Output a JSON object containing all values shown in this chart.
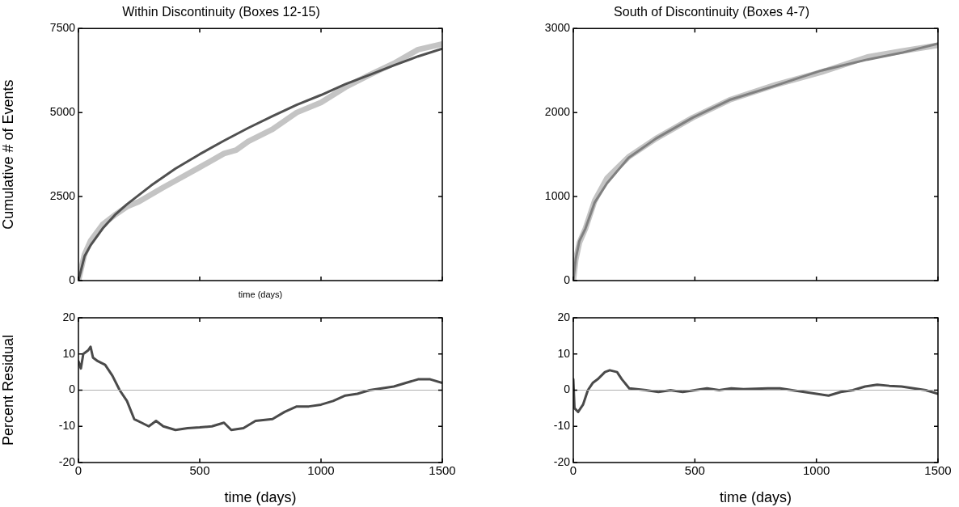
{
  "chart_data": [
    {
      "type": "line",
      "title": "Within Discontinuity (Boxes 12-15)",
      "xlabel": "time (days)",
      "ylabel": "Cumulative # of Events",
      "xlim": [
        0,
        1500
      ],
      "xticks": [
        0,
        500,
        1000,
        1500
      ],
      "ylim": [
        0,
        7500
      ],
      "yticks": [
        0,
        2500,
        5000,
        7500
      ],
      "tick_labels": "y",
      "marker": "none",
      "grid": false,
      "series": [
        {
          "color": "#c4c4c4",
          "x": [
            0,
            25,
            50,
            100,
            150,
            200,
            250,
            300,
            350,
            400,
            500,
            600,
            650,
            700,
            800,
            900,
            1000,
            1100,
            1200,
            1300,
            1400,
            1500
          ],
          "values": [
            0,
            780,
            1180,
            1670,
            1950,
            2200,
            2350,
            2560,
            2770,
            2970,
            3370,
            3780,
            3880,
            4140,
            4500,
            5000,
            5300,
            5750,
            6120,
            6460,
            6870,
            7040
          ]
        },
        {
          "color": "#505050",
          "x": [
            0,
            25,
            50,
            100,
            150,
            200,
            300,
            400,
            500,
            600,
            700,
            800,
            900,
            1000,
            1100,
            1200,
            1300,
            1400,
            1500
          ],
          "values": [
            0,
            720,
            1050,
            1550,
            1950,
            2270,
            2830,
            3330,
            3760,
            4160,
            4540,
            4890,
            5230,
            5520,
            5840,
            6120,
            6400,
            6670,
            6900
          ]
        }
      ]
    },
    {
      "type": "line",
      "title": "South of Discontinuity (Boxes 4-7)",
      "xlim": [
        0,
        1500
      ],
      "xticks": [
        0,
        500,
        1000,
        1500
      ],
      "ylim": [
        0,
        3000
      ],
      "yticks": [
        0,
        1000,
        2000,
        3000
      ],
      "tick_labels": "y",
      "marker": "none",
      "grid": false,
      "series": [
        {
          "color": "#c4c4c4",
          "x": [
            0,
            10,
            25,
            50,
            88,
            139,
            227,
            340,
            492,
            643,
            832,
            1021,
            1210,
            1350,
            1500
          ],
          "values": [
            0,
            250,
            450,
            620,
            950,
            1220,
            1470,
            1690,
            1940,
            2150,
            2330,
            2480,
            2660,
            2730,
            2800
          ]
        },
        {
          "color": "#808080",
          "x": [
            0,
            10,
            25,
            50,
            88,
            139,
            227,
            340,
            492,
            643,
            832,
            1021,
            1210,
            1350,
            1500
          ],
          "values": [
            0,
            260,
            470,
            620,
            930,
            1160,
            1460,
            1690,
            1940,
            2150,
            2320,
            2500,
            2630,
            2710,
            2820
          ]
        }
      ]
    },
    {
      "type": "line",
      "xlabel": "time (days)",
      "ylabel": "Percent Residual",
      "xlim": [
        0,
        1500
      ],
      "xticks": [
        0,
        500,
        1000,
        1500
      ],
      "ylim": [
        -20,
        20
      ],
      "yticks": [
        -20,
        -10,
        0,
        10,
        20
      ],
      "marker": "none",
      "grid": false,
      "ref_lines": [
        {
          "axis": "y",
          "value": 0,
          "color": "#b0b0b0"
        }
      ],
      "series": [
        {
          "color": "#4a4a4a",
          "x": [
            0,
            10,
            20,
            40,
            50,
            60,
            80,
            110,
            140,
            170,
            200,
            230,
            260,
            290,
            320,
            350,
            400,
            450,
            500,
            550,
            600,
            630,
            680,
            730,
            800,
            850,
            900,
            950,
            1000,
            1050,
            1100,
            1150,
            1200,
            1250,
            1300,
            1350,
            1400,
            1450,
            1500
          ],
          "values": [
            8,
            6,
            10,
            11,
            12,
            9,
            8,
            7,
            4,
            0,
            -3,
            -8,
            -9,
            -10,
            -8.5,
            -10,
            -11,
            -10.5,
            -10.3,
            -10,
            -9,
            -11,
            -10.5,
            -8.5,
            -8,
            -6,
            -4.5,
            -4.5,
            -4,
            -3,
            -1.5,
            -1,
            0,
            0.5,
            1,
            2,
            3,
            3,
            2
          ]
        }
      ]
    },
    {
      "type": "line",
      "xlabel": "time (days)",
      "xlim": [
        0,
        1500
      ],
      "xticks": [
        0,
        500,
        1000,
        1500
      ],
      "ylim": [
        -20,
        20
      ],
      "yticks": [
        -20,
        -10,
        0,
        10,
        20
      ],
      "marker": "none",
      "grid": false,
      "ref_lines": [
        {
          "axis": "y",
          "value": 0,
          "color": "#b0b0b0"
        }
      ],
      "series": [
        {
          "color": "#4a4a4a",
          "x": [
            0,
            5,
            20,
            40,
            60,
            80,
            100,
            130,
            150,
            180,
            200,
            230,
            300,
            350,
            400,
            450,
            500,
            550,
            600,
            650,
            700,
            800,
            850,
            900,
            1000,
            1050,
            1100,
            1150,
            1200,
            1250,
            1300,
            1350,
            1400,
            1450,
            1500
          ],
          "values": [
            3,
            -5,
            -6,
            -4,
            0,
            2,
            3,
            5,
            5.5,
            5,
            3,
            0.5,
            0,
            -0.5,
            0,
            -0.5,
            0,
            0.5,
            0,
            0.5,
            0.3,
            0.5,
            0.5,
            0,
            -1,
            -1.5,
            -0.5,
            0,
            1,
            1.5,
            1.2,
            1,
            0.5,
            0,
            -1
          ]
        }
      ]
    }
  ]
}
